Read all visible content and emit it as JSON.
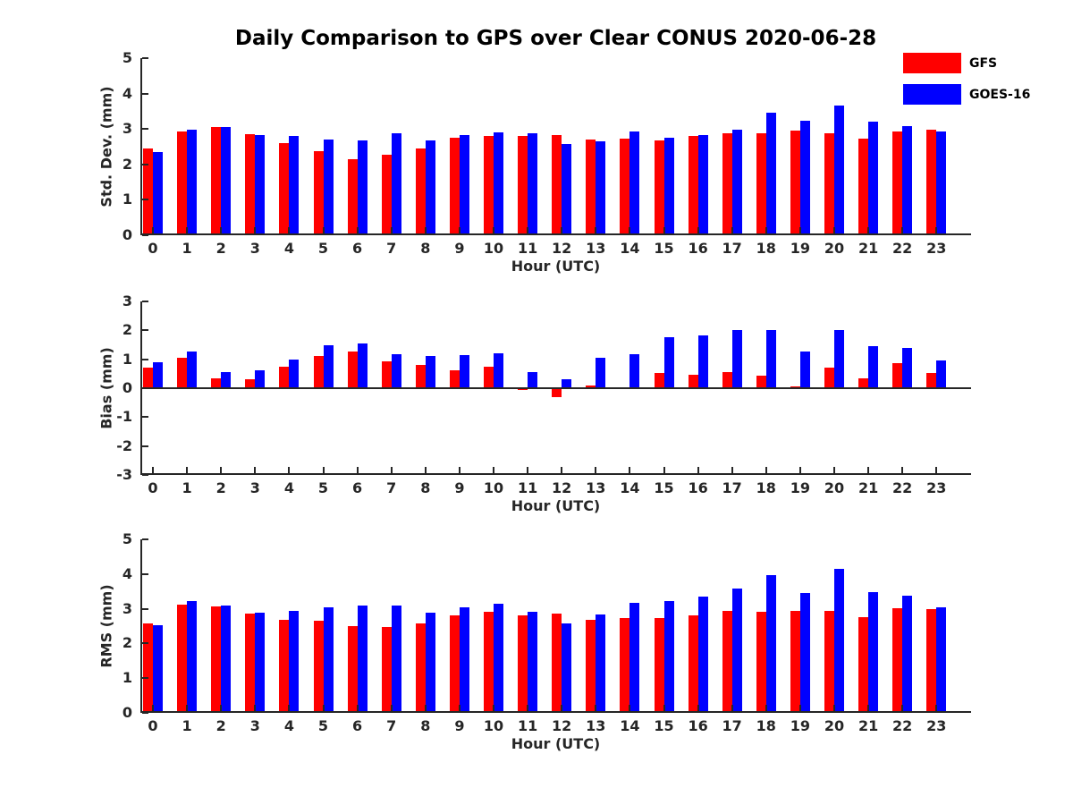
{
  "title": "Daily Comparison to GPS over Clear CONUS 2020-06-28",
  "colors": {
    "gfs": "#ff0000",
    "goes16": "#0000ff",
    "axis": "#262626"
  },
  "legend": {
    "items": [
      {
        "label": "GFS",
        "color": "#ff0000"
      },
      {
        "label": "GOES-16",
        "color": "#0000ff"
      }
    ]
  },
  "chart_data": [
    {
      "type": "bar",
      "panel": "std-dev",
      "ylabel": "Std. Dev. (mm)",
      "xlabel": "Hour (UTC)",
      "ylim": [
        0,
        5
      ],
      "yticks": [
        0,
        1,
        2,
        3,
        4,
        5
      ],
      "grid": false,
      "legend_position": "outside-top-right",
      "categories": [
        0,
        1,
        2,
        3,
        4,
        5,
        6,
        7,
        8,
        9,
        10,
        11,
        12,
        13,
        14,
        15,
        16,
        17,
        18,
        19,
        20,
        21,
        22,
        23
      ],
      "series": [
        {
          "name": "GFS",
          "color": "#ff0000",
          "values": [
            2.45,
            2.93,
            3.05,
            2.85,
            2.6,
            2.38,
            2.15,
            2.28,
            2.45,
            2.75,
            2.8,
            2.8,
            2.83,
            2.7,
            2.73,
            2.67,
            2.8,
            2.89,
            2.88,
            2.96,
            2.88,
            2.73,
            2.92,
            2.97
          ]
        },
        {
          "name": "GOES-16",
          "color": "#0000ff",
          "values": [
            2.35,
            2.97,
            3.05,
            2.83,
            2.8,
            2.7,
            2.67,
            2.88,
            2.67,
            2.82,
            2.9,
            2.87,
            2.57,
            2.66,
            2.94,
            2.74,
            2.83,
            2.97,
            3.45,
            3.22,
            3.65,
            3.2,
            3.08,
            2.92
          ]
        }
      ]
    },
    {
      "type": "bar",
      "panel": "bias",
      "ylabel": "Bias (mm)",
      "xlabel": "Hour (UTC)",
      "ylim": [
        -3,
        3
      ],
      "yticks": [
        -3,
        -2,
        -1,
        0,
        1,
        2,
        3
      ],
      "grid": false,
      "categories": [
        0,
        1,
        2,
        3,
        4,
        5,
        6,
        7,
        8,
        9,
        10,
        11,
        12,
        13,
        14,
        15,
        16,
        17,
        18,
        19,
        20,
        21,
        22,
        23
      ],
      "series": [
        {
          "name": "GFS",
          "color": "#ff0000",
          "values": [
            0.72,
            1.05,
            0.33,
            0.32,
            0.73,
            1.1,
            1.27,
            0.92,
            0.8,
            0.63,
            0.73,
            -0.05,
            -0.3,
            0.1,
            0.02,
            0.52,
            0.47,
            0.57,
            0.42,
            0.07,
            0.7,
            0.35,
            0.88,
            0.52
          ]
        },
        {
          "name": "GOES-16",
          "color": "#0000ff",
          "values": [
            0.9,
            1.28,
            0.57,
            0.61,
            1.0,
            1.47,
            1.55,
            1.18,
            1.1,
            1.15,
            1.21,
            0.55,
            0.32,
            1.05,
            1.16,
            1.75,
            1.83,
            2.0,
            2.01,
            1.28,
            2.01,
            1.45,
            1.4,
            0.97
          ]
        }
      ]
    },
    {
      "type": "bar",
      "panel": "rms",
      "ylabel": "RMS (mm)",
      "xlabel": "Hour (UTC)",
      "ylim": [
        0,
        5
      ],
      "yticks": [
        0,
        1,
        2,
        3,
        4,
        5
      ],
      "grid": false,
      "categories": [
        0,
        1,
        2,
        3,
        4,
        5,
        6,
        7,
        8,
        9,
        10,
        11,
        12,
        13,
        14,
        15,
        16,
        17,
        18,
        19,
        20,
        21,
        22,
        23
      ],
      "series": [
        {
          "name": "GFS",
          "color": "#ff0000",
          "values": [
            2.57,
            3.11,
            3.06,
            2.87,
            2.68,
            2.66,
            2.51,
            2.48,
            2.59,
            2.82,
            2.9,
            2.82,
            2.85,
            2.68,
            2.72,
            2.72,
            2.81,
            2.93,
            2.9,
            2.93,
            2.95,
            2.75,
            3.02,
            2.99
          ]
        },
        {
          "name": "GOES-16",
          "color": "#0000ff",
          "values": [
            2.53,
            3.22,
            3.09,
            2.89,
            2.95,
            3.04,
            3.09,
            3.09,
            2.89,
            3.04,
            3.15,
            2.92,
            2.57,
            2.83,
            3.16,
            3.23,
            3.34,
            3.58,
            3.97,
            3.45,
            4.15,
            3.48,
            3.38,
            3.05
          ]
        }
      ]
    }
  ]
}
